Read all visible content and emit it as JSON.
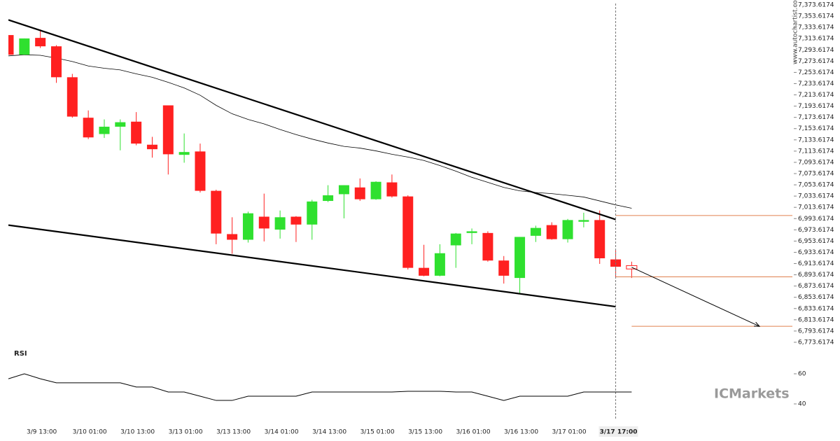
{
  "chart_data": [
    {
      "type": "candlestick",
      "categories": [
        null,
        null,
        "3/9 13:00",
        null,
        null,
        "3/10 01:00",
        null,
        null,
        "3/10 13:00",
        null,
        null,
        "3/13 01:00",
        null,
        null,
        "3/13 13:00",
        null,
        null,
        "3/14 01:00",
        null,
        null,
        "3/14 13:00",
        null,
        null,
        "3/15 01:00",
        null,
        null,
        "3/15 13:00",
        null,
        null,
        "3/16 01:00",
        null,
        null,
        "3/16 13:00",
        null,
        null,
        "3/17 01:00",
        null,
        null,
        "3/17 17:00",
        null
      ],
      "ohlc": [
        [
          7320,
          7320,
          7285,
          7285
        ],
        [
          7285,
          7314,
          7285,
          7314
        ],
        [
          7315,
          7330,
          7297,
          7300
        ],
        [
          7300,
          7302,
          7235,
          7245
        ],
        [
          7245,
          7251,
          7173,
          7175
        ],
        [
          7173,
          7186,
          7135,
          7138
        ],
        [
          7144,
          7170,
          7137,
          7157
        ],
        [
          7157,
          7170,
          7115,
          7165
        ],
        [
          7166,
          7183,
          7124,
          7127
        ],
        [
          7125,
          7139,
          7102,
          7117
        ],
        [
          7195,
          7195,
          7072,
          7108
        ],
        [
          7107,
          7145,
          7093,
          7112
        ],
        [
          7113,
          7127,
          7040,
          7043
        ],
        [
          7043,
          7045,
          6948,
          6967
        ],
        [
          6966,
          6996,
          6931,
          6956
        ],
        [
          6956,
          7006,
          6951,
          7003
        ],
        [
          6997,
          7038,
          6953,
          6976
        ],
        [
          6974,
          7008,
          6958,
          6996
        ],
        [
          6997,
          6998,
          6952,
          6983
        ],
        [
          6983,
          7027,
          6956,
          7024
        ],
        [
          7025,
          7053,
          7023,
          7035
        ],
        [
          7037,
          7053,
          6994,
          7053
        ],
        [
          7049,
          7065,
          7025,
          7028
        ],
        [
          7028,
          7060,
          7027,
          7059
        ],
        [
          7058,
          7072,
          7031,
          7033
        ],
        [
          7033,
          7035,
          6903,
          6906
        ],
        [
          6906,
          6947,
          6891,
          6892
        ],
        [
          6892,
          6948,
          6891,
          6932
        ],
        [
          6946,
          6968,
          6906,
          6967
        ],
        [
          6968,
          6976,
          6948,
          6971
        ],
        [
          6968,
          6971,
          6917,
          6919
        ],
        [
          6919,
          6927,
          6878,
          6892
        ],
        [
          6888,
          6961,
          6861,
          6961
        ],
        [
          6963,
          6981,
          6952,
          6977
        ],
        [
          6982,
          6987,
          6956,
          6957
        ],
        [
          6957,
          6993,
          6951,
          6991
        ],
        [
          6988,
          7004,
          6978,
          6991
        ],
        [
          6991,
          7008,
          6913,
          6923
        ],
        [
          6921,
          6937,
          6890,
          6908
        ],
        [
          6910,
          6917,
          6888,
          6904
        ]
      ],
      "up_color": "#2fe02f",
      "down_color": "#ff2020",
      "last_hollow": true,
      "highlight": 38,
      "ma": [
        7283,
        7285,
        7284,
        7279,
        7273,
        7265,
        7261,
        7258,
        7251,
        7245,
        7236,
        7226,
        7213,
        7195,
        7180,
        7170,
        7162,
        7152,
        7143,
        7135,
        7128,
        7122,
        7119,
        7114,
        7108,
        7103,
        7097,
        7088,
        7078,
        7067,
        7058,
        7049,
        7043,
        7040,
        7038,
        7035,
        7032,
        7025,
        7018,
        7012
      ],
      "ma_color": "#000000",
      "trendlines": [
        {
          "x": [
            0,
            38
          ],
          "y": [
            7347,
            6992
          ]
        },
        {
          "x": [
            0,
            38
          ],
          "y": [
            6982,
            6837
          ]
        }
      ],
      "levels": [
        {
          "x": 38,
          "y": 6999
        },
        {
          "x": 38,
          "y": 6890
        },
        {
          "x": 39,
          "y": 6802
        }
      ],
      "level_color": "#e0804f",
      "arrow": {
        "x": [
          39,
          47
        ],
        "y": [
          6907,
          6802
        ]
      },
      "ylim": [
        6763.6174,
        7383.6174
      ],
      "yticks": [
        {
          "value": 7373.6174,
          "label": "7,373.6174"
        },
        {
          "value": 7353.6174,
          "label": "7,353.6174"
        },
        {
          "value": 7333.6174,
          "label": "7,333.6174"
        },
        {
          "value": 7313.6174,
          "label": "7,313.6174"
        },
        {
          "value": 7293.6174,
          "label": "7,293.6174"
        },
        {
          "value": 7273.6174,
          "label": "7,273.6174"
        },
        {
          "value": 7253.6174,
          "label": "7,253.6174"
        },
        {
          "value": 7233.6174,
          "label": "7,233.6174"
        },
        {
          "value": 7213.6174,
          "label": "7,213.6174"
        },
        {
          "value": 7193.6174,
          "label": "7,193.6174"
        },
        {
          "value": 7173.6174,
          "label": "7,173.6174"
        },
        {
          "value": 7153.6174,
          "label": "7,153.6174"
        },
        {
          "value": 7133.6174,
          "label": "7,133.6174"
        },
        {
          "value": 7113.6174,
          "label": "7,113.6174"
        },
        {
          "value": 7093.6174,
          "label": "7,093.6174"
        },
        {
          "value": 7073.6174,
          "label": "7,073.6174"
        },
        {
          "value": 7053.6174,
          "label": "7,053.6174"
        },
        {
          "value": 7033.6174,
          "label": "7,033.6174"
        },
        {
          "value": 7013.6174,
          "label": "7,013.6174"
        },
        {
          "value": 6993.6174,
          "label": "6,993.6174"
        },
        {
          "value": 6973.6174,
          "label": "6,973.6174"
        },
        {
          "value": 6953.6174,
          "label": "6,953.6174"
        },
        {
          "value": 6933.6174,
          "label": "6,933.6174"
        },
        {
          "value": 6913.6174,
          "label": "6,913.6174"
        },
        {
          "value": 6893.6174,
          "label": "6,893.6174"
        },
        {
          "value": 6873.6174,
          "label": "6,873.6174"
        },
        {
          "value": 6853.6174,
          "label": "6,853.6174"
        },
        {
          "value": 6833.6174,
          "label": "6,833.6174"
        },
        {
          "value": 6813.6174,
          "label": "6,813.6174"
        },
        {
          "value": 6793.6174,
          "label": "6,793.6174"
        },
        {
          "value": 6773.6174,
          "label": "6,773.6174"
        }
      ]
    },
    {
      "type": "line",
      "title": "RSI",
      "values": [
        56.7,
        60,
        56.7,
        54,
        54,
        54,
        54,
        54,
        51.2,
        51.2,
        47.9,
        47.9,
        45.1,
        42.3,
        42.3,
        45.1,
        45.1,
        45.1,
        45.1,
        47.9,
        47.9,
        47.9,
        47.9,
        47.9,
        47.9,
        48.4,
        48.4,
        48.4,
        47.9,
        47.9,
        45.1,
        42.3,
        45.1,
        45.1,
        45.1,
        45.1,
        47.9,
        47.9,
        47.9,
        47.9
      ],
      "color": "#000000",
      "ylim": [
        32,
        78
      ],
      "yticks": [
        60,
        40
      ]
    }
  ],
  "watermark": "www.autochartist.com",
  "brand": "ICMarkets"
}
